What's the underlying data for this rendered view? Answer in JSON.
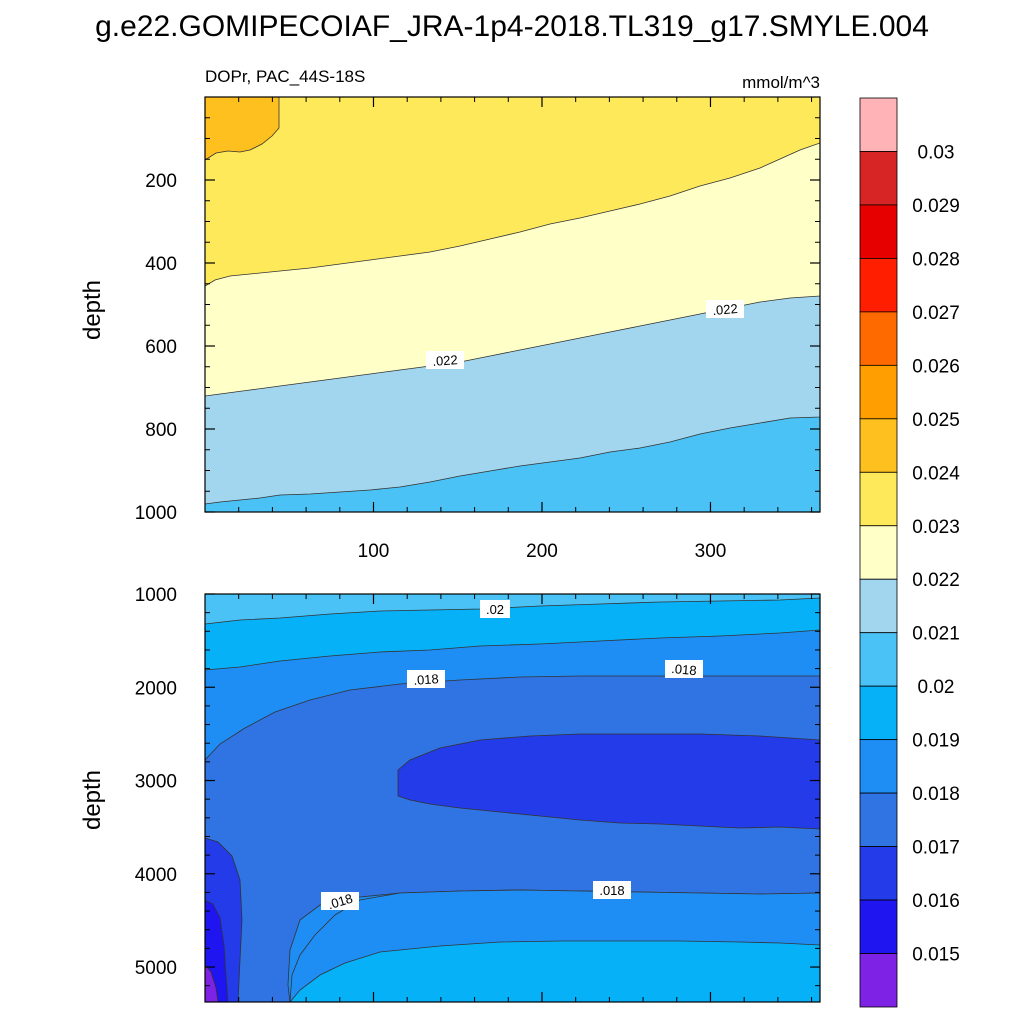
{
  "figure_title": "g.e22.GOMIPECOIAF_JRA-1p4-2018.TL319_g17.SMYLE.004",
  "chart_data": [
    {
      "type": "contour",
      "panel": "top",
      "title_left": "DOPr, PAC_44S-18S",
      "title_right": "mmol/m^3",
      "xlabel": "",
      "ylabel": "depth",
      "xlim": [
        0,
        365
      ],
      "ylim": [
        1000,
        0
      ],
      "xticks": [
        "100",
        "200",
        "300"
      ],
      "yticks": [
        "200",
        "400",
        "600",
        "800",
        "1000"
      ],
      "contour_labels": [
        ".022",
        ".022"
      ],
      "fill_bands": [
        {
          "level": "0.024 - 0.025",
          "color": "#FDC01E"
        },
        {
          "level": "0.023 - 0.024",
          "color": "#FEE95A"
        },
        {
          "level": "0.022 - 0.023",
          "color": "#FFFFC8"
        },
        {
          "level": "0.021 - 0.022",
          "color": "#A2D6EF"
        },
        {
          "level": "0.020 - 0.021",
          "color": "#4AC2F5"
        }
      ]
    },
    {
      "type": "contour",
      "panel": "bottom",
      "xlabel": "",
      "ylabel": "depth",
      "xlim": [
        0,
        365
      ],
      "ylim": [
        1000,
        5375
      ],
      "yticks": [
        "1000",
        "2000",
        "3000",
        "4000",
        "5000"
      ],
      "contour_labels": [
        ".02",
        ".018",
        ".018",
        ".018",
        ".018"
      ],
      "fill_bands": [
        {
          "level": "0.020 - 0.021",
          "color": "#4AC2F5"
        },
        {
          "level": "0.019 - 0.020",
          "color": "#07B1F8"
        },
        {
          "level": "0.018 - 0.019",
          "color": "#1E8EF5"
        },
        {
          "level": "0.017 - 0.018",
          "color": "#3073E3"
        },
        {
          "level": "0.016 - 0.017",
          "color": "#233BE8"
        },
        {
          "level": "0.015 - 0.016",
          "color": "#1E15F0"
        },
        {
          "level": "below 0.015",
          "color": "#7E22E6"
        }
      ]
    }
  ],
  "colorbar": {
    "labels": [
      "0.03",
      "0.029",
      "0.028",
      "0.027",
      "0.026",
      "0.025",
      "0.024",
      "0.023",
      "0.022",
      "0.021",
      "0.02",
      "0.019",
      "0.018",
      "0.017",
      "0.016",
      "0.015"
    ],
    "colors": [
      "#FFB3B6",
      "#D72424",
      "#E60000",
      "#FF1E00",
      "#FF6A00",
      "#FF9E00",
      "#FDC01E",
      "#FEE95A",
      "#FFFFC8",
      "#A2D6EF",
      "#4AC2F5",
      "#07B1F8",
      "#1E8EF5",
      "#3073E3",
      "#233BE8",
      "#1E15F0",
      "#7E22E6"
    ]
  }
}
